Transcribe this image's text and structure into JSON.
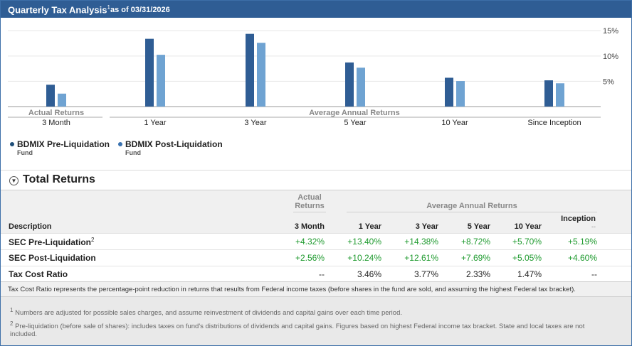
{
  "header": {
    "title": "Quarterly Tax Analysis",
    "title_sup": "1",
    "as_of": "as of 03/31/2026"
  },
  "chart_data": {
    "type": "bar",
    "categories": [
      "3 Month",
      "1 Year",
      "3 Year",
      "5 Year",
      "10 Year",
      "Since Inception"
    ],
    "series": [
      {
        "name": "BDMIX Pre-Liquidation Fund",
        "values": [
          4.32,
          13.4,
          14.38,
          8.72,
          5.7,
          5.19
        ],
        "color": "#2f5d94"
      },
      {
        "name": "BDMIX Post-Liquidation Fund",
        "values": [
          2.56,
          10.24,
          12.61,
          7.69,
          5.05,
          4.6
        ],
        "color": "#6fa3d2"
      }
    ],
    "ylim": [
      0,
      17
    ],
    "yticks": [
      5,
      10,
      15
    ],
    "ytick_labels": [
      "5%",
      "10%",
      "15%"
    ],
    "group_labels": {
      "left": "Actual Returns",
      "right": "Average Annual Returns"
    },
    "grid": true,
    "legend_position": "bottom-left"
  },
  "legend": [
    {
      "label": "BDMIX Pre-Liquidation",
      "sub": "Fund",
      "color": "#1f4e79"
    },
    {
      "label": "BDMIX Post-Liquidation",
      "sub": "Fund",
      "color": "#3a72b0"
    }
  ],
  "section": {
    "title": "Total Returns",
    "toggle_icon": "chevron-down-icon"
  },
  "table": {
    "group_actual": [
      "Actual",
      "Returns"
    ],
    "group_avg": "Average Annual Returns",
    "inception_label": "Inception",
    "inception_sub": "--",
    "columns": [
      "Description",
      "3 Month",
      "1 Year",
      "3 Year",
      "5 Year",
      "10 Year"
    ],
    "rows": [
      {
        "desc": "SEC Pre-Liquidation",
        "sup": "2",
        "values": [
          "+4.32%",
          "+13.40%",
          "+14.38%",
          "+8.72%",
          "+5.70%",
          "+5.19%"
        ]
      },
      {
        "desc": "SEC Post-Liquidation",
        "sup": "",
        "values": [
          "+2.56%",
          "+10.24%",
          "+12.61%",
          "+7.69%",
          "+5.05%",
          "+4.60%"
        ]
      },
      {
        "desc": "Tax Cost Ratio",
        "sup": "",
        "values": [
          "--",
          "3.46%",
          "3.77%",
          "2.33%",
          "1.47%",
          "--"
        ]
      }
    ]
  },
  "note": "Tax Cost Ratio represents the percentage-point reduction in returns that results from Federal income taxes (before shares in the fund are sold, and assuming the highest Federal tax bracket).",
  "footnotes": [
    {
      "num": "1",
      "text": "Numbers are adjusted for possible sales charges, and assume reinvestment of dividends and capital gains over each time period."
    },
    {
      "num": "2",
      "text": "Pre-liquidation (before sale of shares): includes taxes on fund's distributions of dividends and capital gains. Figures based on highest Federal income tax bracket. State and local taxes are not",
      "text2": "included."
    }
  ]
}
